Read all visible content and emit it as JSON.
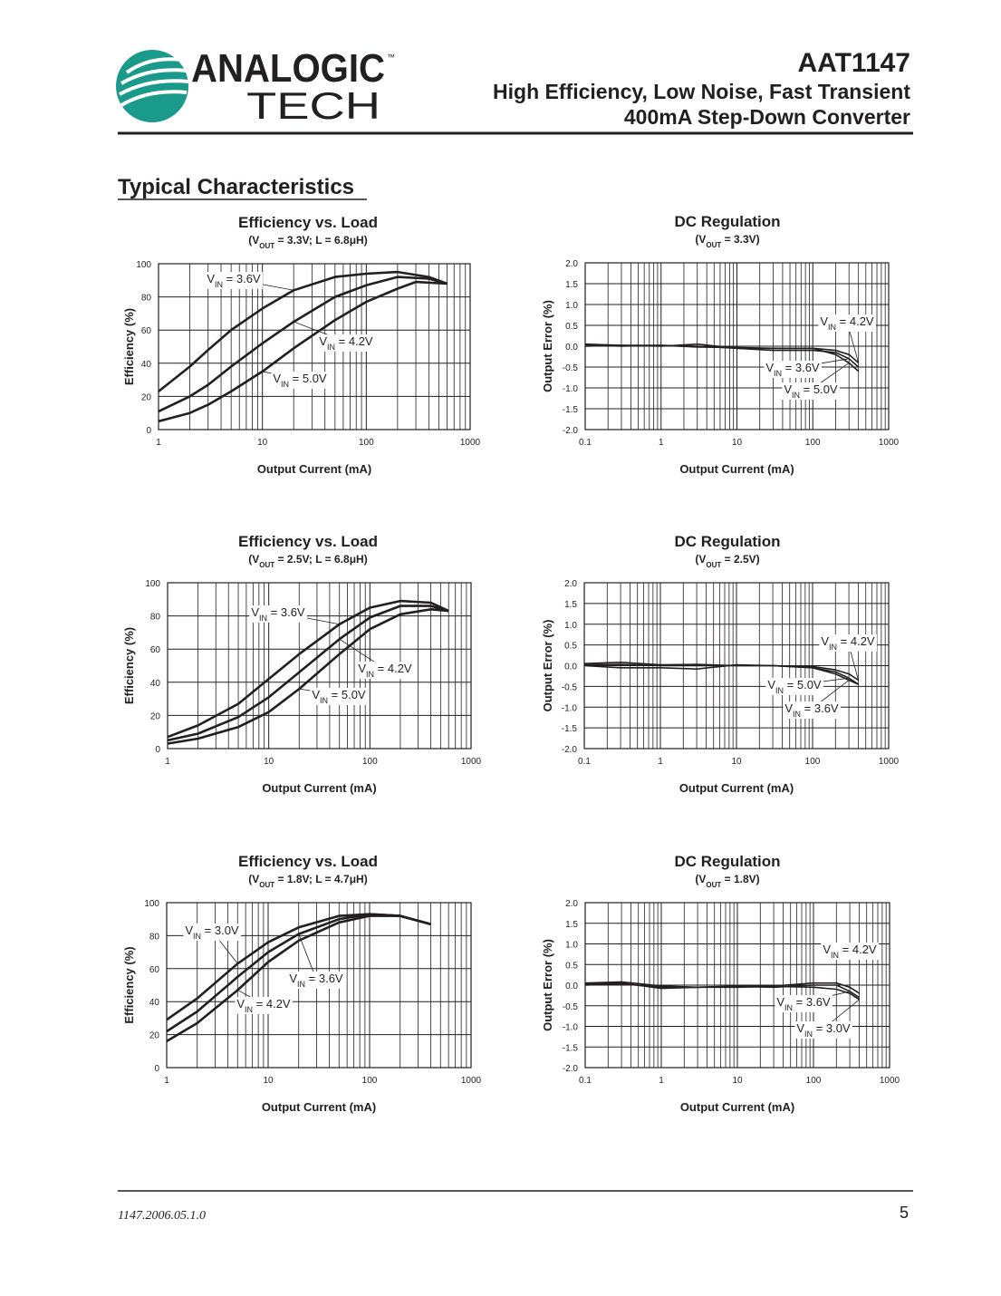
{
  "header": {
    "logo_top": "ANALOGIC",
    "logo_tm": "™",
    "logo_bottom": "TECH",
    "part": "AAT1147",
    "line1": "High Efficiency, Low Noise, Fast Transient",
    "line2": "400mA Step-Down Converter"
  },
  "section_title": "Typical Characteristics",
  "footer": {
    "doc": "1147.2006.05.1.0",
    "page": "5"
  },
  "chart_data": [
    {
      "type": "line",
      "title": "Efficiency vs. Load",
      "subtitle": [
        "(V",
        "OUT",
        " = 3.3V; L = 6.8μH)"
      ],
      "x_label": "Output Current (mA)",
      "y_label": "Efficiency (%)",
      "xscale": "log",
      "minor_grid": true,
      "grid": true,
      "xlim": [
        1,
        1000
      ],
      "xticks": [
        1,
        10,
        100,
        1000
      ],
      "ylim": [
        0,
        100
      ],
      "yticks": [
        0,
        20,
        40,
        60,
        80,
        100
      ],
      "series": [
        {
          "name": [
            "V",
            "IN",
            " = 3.6V"
          ],
          "color": "#231f20",
          "x": [
            1,
            2,
            3,
            5,
            10,
            20,
            50,
            100,
            200,
            400,
            600
          ],
          "values": [
            23,
            38,
            48,
            60,
            73,
            84,
            92,
            94,
            95,
            92,
            88
          ]
        },
        {
          "name": [
            "V",
            "IN",
            " = 4.2V"
          ],
          "color": "#231f20",
          "x": [
            1,
            2,
            3,
            5,
            10,
            20,
            50,
            100,
            200,
            400,
            600
          ],
          "values": [
            11,
            20,
            27,
            38,
            52,
            65,
            80,
            87,
            92,
            91,
            88
          ]
        },
        {
          "name": [
            "V",
            "IN",
            " = 5.0V"
          ],
          "color": "#231f20",
          "x": [
            1,
            2,
            3,
            5,
            10,
            20,
            50,
            100,
            200,
            300,
            600
          ],
          "values": [
            5,
            10,
            15,
            23,
            35,
            49,
            66,
            77,
            85,
            89,
            88
          ]
        }
      ]
    },
    {
      "type": "line",
      "title": "DC Regulation",
      "subtitle": [
        "(V",
        "OUT",
        " = 3.3V)"
      ],
      "x_label": "Output Current (mA)",
      "y_label": "Output Error (%)",
      "xscale": "log",
      "minor_grid": true,
      "grid": true,
      "xlim": [
        0.1,
        1000
      ],
      "xticks": [
        0.1,
        1,
        10,
        100,
        1000
      ],
      "ylim": [
        -2,
        2
      ],
      "yticks": [
        {
          "value": -2,
          "label": "-2.0"
        },
        {
          "value": -1.5,
          "label": "-1.5"
        },
        {
          "value": -1,
          "label": "-1.0"
        },
        {
          "value": -0.5,
          "label": "-0.5"
        },
        {
          "value": 0,
          "label": "0.0"
        },
        {
          "value": 0.5,
          "label": "0.5"
        },
        {
          "value": 1,
          "label": "1.0"
        },
        {
          "value": 1.5,
          "label": "1.5"
        },
        {
          "value": 2,
          "label": "2.0"
        }
      ],
      "series": [
        {
          "name": [
            "V",
            "IN",
            " = 4.2V"
          ],
          "color": "#231f20",
          "x": [
            0.1,
            0.3,
            1,
            3,
            10,
            30,
            100,
            200,
            300,
            400
          ],
          "values": [
            0.05,
            0.02,
            0,
            0.05,
            -0.05,
            -0.05,
            -0.05,
            -0.1,
            -0.2,
            -0.4
          ]
        },
        {
          "name": [
            "V",
            "IN",
            " = 3.6V"
          ],
          "color": "#231f20",
          "x": [
            0.1,
            0.3,
            1,
            3,
            10,
            30,
            100,
            200,
            300,
            400
          ],
          "values": [
            0.03,
            0,
            0.02,
            0,
            -0.05,
            -0.1,
            -0.1,
            -0.15,
            -0.3,
            -0.5
          ]
        },
        {
          "name": [
            "V",
            "IN",
            " = 5.0V"
          ],
          "color": "#231f20",
          "x": [
            0.1,
            0.3,
            1,
            3,
            10,
            30,
            100,
            200,
            300,
            400
          ],
          "values": [
            0,
            0.02,
            0.02,
            -0.02,
            -0.03,
            -0.05,
            -0.05,
            -0.2,
            -0.4,
            -0.6
          ]
        }
      ]
    },
    {
      "type": "line",
      "title": "Efficiency vs. Load",
      "subtitle": [
        "(V",
        "OUT",
        " = 2.5V; L = 6.8μH)"
      ],
      "x_label": "Output Current (mA)",
      "y_label": "Efficiency (%)",
      "xscale": "log",
      "minor_grid": true,
      "grid": true,
      "xlim": [
        1,
        1000
      ],
      "xticks": [
        1,
        10,
        100,
        1000
      ],
      "ylim": [
        0,
        100
      ],
      "yticks": [
        0,
        20,
        40,
        60,
        80,
        100
      ],
      "series": [
        {
          "name": [
            "V",
            "IN",
            " = 3.6V"
          ],
          "color": "#231f20",
          "x": [
            1,
            2,
            5,
            10,
            20,
            50,
            100,
            200,
            400,
            600
          ],
          "values": [
            7,
            14,
            27,
            42,
            57,
            75,
            85,
            89,
            88,
            83
          ]
        },
        {
          "name": [
            "V",
            "IN",
            " = 4.2V"
          ],
          "color": "#231f20",
          "x": [
            1,
            2,
            5,
            10,
            20,
            50,
            100,
            200,
            400,
            600
          ],
          "values": [
            5,
            9,
            19,
            31,
            46,
            66,
            79,
            86,
            86,
            83
          ]
        },
        {
          "name": [
            "V",
            "IN",
            " = 5.0V"
          ],
          "color": "#231f20",
          "x": [
            1,
            2,
            5,
            10,
            20,
            50,
            100,
            200,
            400,
            600
          ],
          "values": [
            3,
            6,
            13,
            22,
            36,
            57,
            72,
            81,
            84,
            83
          ]
        }
      ]
    },
    {
      "type": "line",
      "title": "DC Regulation",
      "subtitle": [
        "(V",
        "OUT",
        " = 2.5V)"
      ],
      "x_label": "Output Current (mA)",
      "y_label": "Output Error (%)",
      "xscale": "log",
      "minor_grid": true,
      "grid": true,
      "xlim": [
        0.1,
        1000
      ],
      "xticks": [
        0.1,
        1,
        10,
        100,
        1000
      ],
      "ylim": [
        -2,
        2
      ],
      "yticks": [
        {
          "value": -2,
          "label": "-2.0"
        },
        {
          "value": -1.5,
          "label": "-1.5"
        },
        {
          "value": -1,
          "label": "-1.0"
        },
        {
          "value": -0.5,
          "label": "-0.5"
        },
        {
          "value": 0,
          "label": "0.0"
        },
        {
          "value": 0.5,
          "label": "0.5"
        },
        {
          "value": 1,
          "label": "1.0"
        },
        {
          "value": 1.5,
          "label": "1.5"
        },
        {
          "value": 2,
          "label": "2.0"
        }
      ],
      "series": [
        {
          "name": [
            "V",
            "IN",
            " = 4.2V"
          ],
          "color": "#231f20",
          "x": [
            0.1,
            0.3,
            1,
            3,
            10,
            30,
            100,
            200,
            300,
            400
          ],
          "values": [
            0.05,
            0.08,
            0.02,
            0.03,
            0,
            0,
            -0.02,
            -0.1,
            -0.2,
            -0.35
          ]
        },
        {
          "name": [
            "V",
            "IN",
            " = 5.0V"
          ],
          "color": "#231f20",
          "x": [
            0.1,
            0.3,
            1,
            3,
            10,
            30,
            100,
            200,
            300,
            400
          ],
          "values": [
            0.02,
            0.03,
            0,
            0,
            0,
            0,
            -0.05,
            -0.15,
            -0.3,
            -0.45
          ]
        },
        {
          "name": [
            "V",
            "IN",
            " = 3.6V"
          ],
          "color": "#231f20",
          "x": [
            0.1,
            0.3,
            1,
            3,
            10,
            30,
            100,
            200,
            300,
            400
          ],
          "values": [
            0,
            -0.05,
            -0.05,
            -0.08,
            0.02,
            0,
            -0.05,
            -0.2,
            -0.35,
            -0.45
          ]
        }
      ]
    },
    {
      "type": "line",
      "title": "Efficiency vs. Load",
      "subtitle": [
        "(V",
        "OUT",
        " = 1.8V; L = 4.7μH)"
      ],
      "x_label": "Output Current (mA)",
      "y_label": "Efficiency (%)",
      "xscale": "log",
      "minor_grid": true,
      "grid": true,
      "xlim": [
        1,
        1000
      ],
      "xticks": [
        1,
        10,
        100,
        1000
      ],
      "ylim": [
        0,
        100
      ],
      "yticks": [
        0,
        20,
        40,
        60,
        80,
        100
      ],
      "series": [
        {
          "name": [
            "V",
            "IN",
            " = 3.0V"
          ],
          "color": "#231f20",
          "x": [
            1,
            2,
            5,
            10,
            20,
            50,
            100,
            200,
            400
          ],
          "values": [
            29,
            42,
            63,
            76,
            85,
            92,
            93,
            92,
            87
          ]
        },
        {
          "name": [
            "V",
            "IN",
            " = 3.6V"
          ],
          "color": "#231f20",
          "x": [
            1,
            2,
            5,
            10,
            20,
            50,
            100,
            200,
            400
          ],
          "values": [
            22,
            34,
            55,
            70,
            81,
            90,
            93,
            92,
            87
          ]
        },
        {
          "name": [
            "V",
            "IN",
            " = 4.2V"
          ],
          "color": "#231f20",
          "x": [
            1,
            2,
            5,
            10,
            20,
            50,
            100,
            200,
            400
          ],
          "values": [
            16,
            27,
            47,
            64,
            77,
            88,
            92,
            92,
            87
          ]
        }
      ]
    },
    {
      "type": "line",
      "title": "DC Regulation",
      "subtitle": [
        "(V",
        "OUT",
        " = 1.8V)"
      ],
      "x_label": "Output Current (mA)",
      "y_label": "Output Error (%)",
      "xscale": "log",
      "minor_grid": true,
      "grid": true,
      "xlim": [
        0.1,
        1000
      ],
      "xticks": [
        0.1,
        1,
        10,
        100,
        1000
      ],
      "ylim": [
        -2,
        2
      ],
      "yticks": [
        {
          "value": -2,
          "label": "-2.0"
        },
        {
          "value": -1.5,
          "label": "-1.5"
        },
        {
          "value": -1,
          "label": "-1.0"
        },
        {
          "value": -0.5,
          "label": "-0.5"
        },
        {
          "value": 0,
          "label": "0.0"
        },
        {
          "value": 0.5,
          "label": "0.5"
        },
        {
          "value": 1,
          "label": "1.0"
        },
        {
          "value": 1.5,
          "label": "1.5"
        },
        {
          "value": 2,
          "label": "2.0"
        }
      ],
      "series": [
        {
          "name": [
            "V",
            "IN",
            " = 4.2V"
          ],
          "color": "#231f20",
          "x": [
            0.1,
            0.3,
            1,
            3,
            10,
            30,
            100,
            200,
            300,
            400
          ],
          "values": [
            0.05,
            0.08,
            -0.02,
            -0.05,
            -0.02,
            -0.02,
            0.05,
            0.05,
            -0.05,
            -0.2
          ]
        },
        {
          "name": [
            "V",
            "IN",
            " = 3.6V"
          ],
          "color": "#231f20",
          "x": [
            0.1,
            0.3,
            1,
            3,
            10,
            30,
            100,
            200,
            300,
            400
          ],
          "values": [
            0,
            0.03,
            -0.05,
            -0.05,
            -0.03,
            -0.05,
            0,
            0,
            -0.15,
            -0.3
          ]
        },
        {
          "name": [
            "V",
            "IN",
            " = 3.0V"
          ],
          "color": "#231f20",
          "x": [
            0.1,
            0.3,
            1,
            3,
            10,
            30,
            100,
            200,
            300,
            400
          ],
          "values": [
            0.02,
            0.05,
            -0.08,
            -0.05,
            -0.05,
            -0.03,
            -0.05,
            -0.1,
            -0.2,
            -0.35
          ]
        }
      ]
    }
  ]
}
